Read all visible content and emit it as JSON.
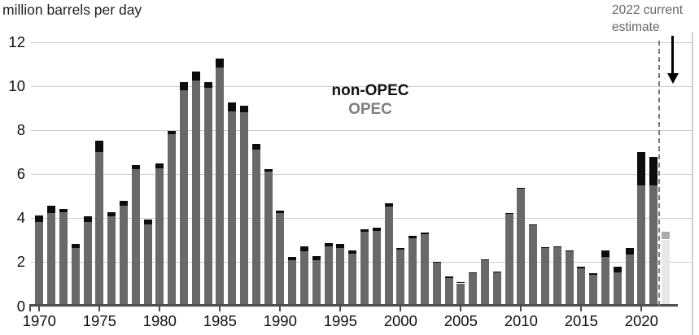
{
  "title": "million barrels per day",
  "legend": {
    "non_opec_label": "non-OPEC",
    "opec_label": "OPEC"
  },
  "annotation": {
    "line1": "2022 current",
    "line2": "estimate"
  },
  "colors": {
    "opec_bar": "#696969",
    "non_opec_bar": "#0d0d0d",
    "estimate_opec_bar": "#e8e8e8",
    "estimate_non_opec_bar": "#ababab",
    "gridline": "#cccccc",
    "axis": "#4d4d4d",
    "annotation_text": "#666666",
    "legend_opec_text": "#7f7f7f"
  },
  "chart_data": {
    "type": "bar",
    "stacked": true,
    "title": "million barrels per day",
    "ylabel": "million barrels per day",
    "xlabel": "",
    "ylim": [
      0,
      12
    ],
    "yticks": [
      0,
      2,
      4,
      6,
      8,
      10,
      12
    ],
    "xticks": [
      1970,
      1975,
      1980,
      1985,
      1990,
      1995,
      2000,
      2005,
      2010,
      2015,
      2020
    ],
    "grid": true,
    "legend_position": "center-top",
    "categories": [
      1970,
      1971,
      1972,
      1973,
      1974,
      1975,
      1976,
      1977,
      1978,
      1979,
      1980,
      1981,
      1982,
      1983,
      1984,
      1985,
      1986,
      1987,
      1988,
      1989,
      1990,
      1991,
      1992,
      1993,
      1994,
      1995,
      1996,
      1997,
      1998,
      1999,
      2000,
      2001,
      2002,
      2003,
      2004,
      2005,
      2006,
      2007,
      2008,
      2009,
      2010,
      2011,
      2012,
      2013,
      2014,
      2015,
      2016,
      2017,
      2018,
      2019,
      2020,
      2021,
      2022
    ],
    "series": [
      {
        "name": "OPEC",
        "values": [
          3.8,
          4.2,
          4.25,
          2.6,
          3.8,
          7.0,
          4.05,
          4.55,
          6.2,
          3.7,
          6.25,
          7.8,
          9.8,
          10.25,
          9.9,
          10.85,
          8.85,
          8.8,
          7.1,
          6.1,
          4.2,
          2.05,
          2.45,
          2.05,
          2.7,
          2.6,
          2.35,
          3.35,
          3.4,
          4.5,
          2.55,
          3.05,
          3.25,
          1.95,
          1.25,
          1.0,
          1.45,
          2.05,
          1.5,
          4.15,
          5.3,
          3.65,
          2.6,
          2.65,
          2.45,
          1.7,
          1.4,
          2.2,
          1.5,
          2.3,
          5.45,
          5.45,
          3.0
        ]
      },
      {
        "name": "non-OPEC",
        "values": [
          0.3,
          0.35,
          0.15,
          0.2,
          0.25,
          0.5,
          0.2,
          0.2,
          0.2,
          0.2,
          0.2,
          0.15,
          0.35,
          0.4,
          0.25,
          0.4,
          0.4,
          0.3,
          0.25,
          0.1,
          0.1,
          0.15,
          0.25,
          0.2,
          0.15,
          0.2,
          0.15,
          0.1,
          0.15,
          0.15,
          0.05,
          0.1,
          0.05,
          0.05,
          0.05,
          0.05,
          0.05,
          0.05,
          0.05,
          0.05,
          0.05,
          0.05,
          0.05,
          0.05,
          0.05,
          0.05,
          0.05,
          0.3,
          0.25,
          0.3,
          1.55,
          1.3,
          0.35
        ]
      }
    ],
    "estimate_year": 2022,
    "annotation_text": "2022 current estimate"
  }
}
